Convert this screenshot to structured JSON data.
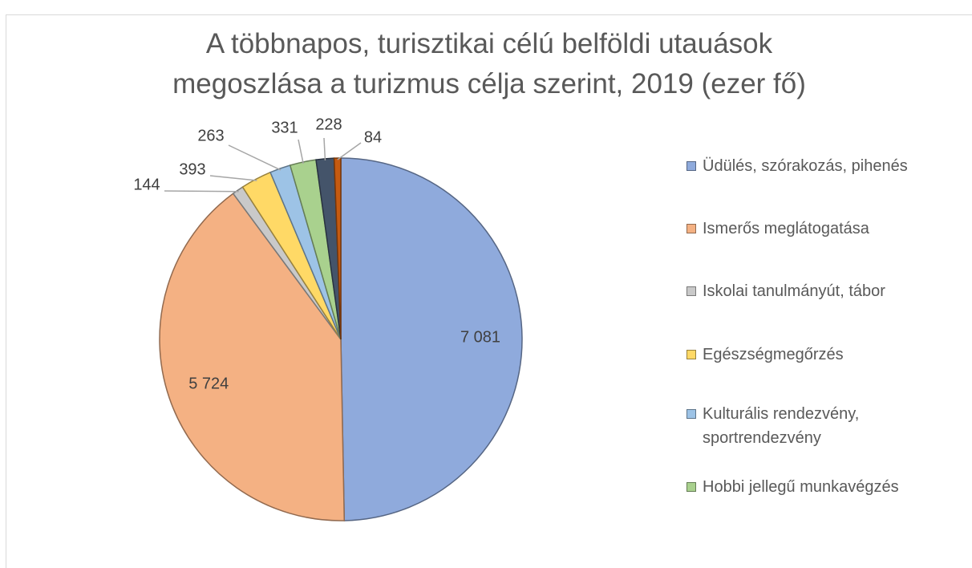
{
  "chart_data": {
    "type": "pie",
    "title": "A többnapos, turisztikai célú belföldi utauások megoszlása a turizmus célja szerint, 2019 (ezer fő)",
    "categories": [
      "Üdülés, szórakozás, pihenés",
      "Ismerős meglátogatása",
      "Iskolai tanulmányút, tábor",
      "Egészségmegőrzés",
      "Kulturális rendezvény, sportrendezvény",
      "Hobbi jellegű munkavégzés",
      null,
      null
    ],
    "values": [
      7081,
      5724,
      144,
      393,
      263,
      331,
      228,
      84
    ],
    "value_labels": [
      "7 081",
      "5 724",
      "144",
      "393",
      "263",
      "331",
      "228",
      "84"
    ],
    "colors": [
      "#8faadc",
      "#f4b183",
      "#c9c9c9",
      "#ffd966",
      "#9dc3e6",
      "#a9d18e",
      "#44546a",
      "#c55a11"
    ],
    "legend": "right"
  }
}
